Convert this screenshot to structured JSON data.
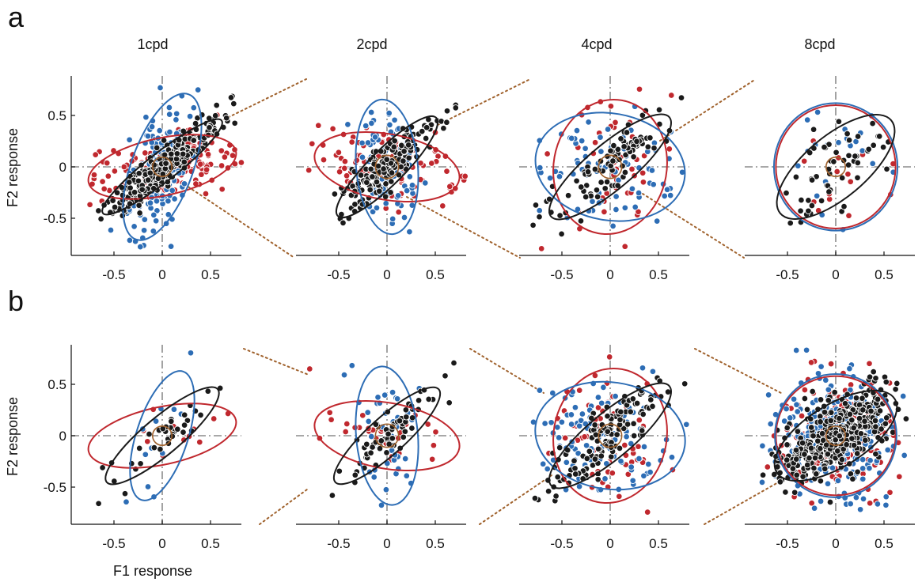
{
  "figure": {
    "panel_labels": [
      "a",
      "b"
    ],
    "column_titles": [
      "1cpd",
      "2cpd",
      "4cpd",
      "8cpd"
    ]
  },
  "colors": {
    "red": "#c0282e",
    "blue": "#2d6db5",
    "black": "#1a1a1a",
    "brown": "#a0622d",
    "crosshair": "#8c8c8c",
    "axis": "#111111"
  },
  "chart_data": {
    "type": "scatter",
    "xlabel": "F1 response",
    "ylabel": "F2 response",
    "xlim": [
      -0.85,
      0.85
    ],
    "ylim": [
      -0.9,
      0.9
    ],
    "xticks": [
      -0.5,
      0,
      0.5
    ],
    "xtick_labels": [
      "-0.5",
      "0",
      "0.5"
    ],
    "yticks": [
      -0.5,
      0,
      0.5
    ],
    "ytick_labels": [
      "-0.5",
      "0",
      "0.5"
    ],
    "grid": false,
    "rows": [
      {
        "label": "a",
        "panels": [
          {
            "title": "1cpd",
            "n": {
              "red": 160,
              "blue": 150,
              "black": 280
            },
            "ellipses": {
              "red": {
                "cx": 0.0,
                "cy": 0.0,
                "a": 0.78,
                "b": 0.28,
                "angle": 12
              },
              "blue": {
                "cx": 0.0,
                "cy": 0.0,
                "a": 0.8,
                "b": 0.3,
                "angle": 70
              },
              "black": {
                "cx": 0.0,
                "cy": 0.0,
                "a": 0.78,
                "b": 0.14,
                "angle": 38
              },
              "brown": {
                "cx": 0.0,
                "cy": 0.0,
                "r": 0.1
              }
            }
          },
          {
            "title": "2cpd",
            "n": {
              "red": 110,
              "blue": 100,
              "black": 170
            },
            "ellipses": {
              "red": {
                "cx": 0.0,
                "cy": 0.0,
                "a": 0.76,
                "b": 0.32,
                "angle": -10
              },
              "blue": {
                "cx": 0.0,
                "cy": 0.0,
                "a": 0.7,
                "b": 0.3,
                "angle": 95
              },
              "black": {
                "cx": 0.0,
                "cy": 0.0,
                "a": 0.72,
                "b": 0.17,
                "angle": 45
              },
              "brown": {
                "cx": 0.0,
                "cy": 0.0,
                "r": 0.12
              }
            }
          },
          {
            "title": "4cpd",
            "n": {
              "red": 50,
              "blue": 80,
              "black": 90
            },
            "ellipses": {
              "red": {
                "cx": 0.0,
                "cy": 0.0,
                "a": 0.7,
                "b": 0.55,
                "angle": 80
              },
              "blue": {
                "cx": 0.0,
                "cy": 0.0,
                "a": 0.78,
                "b": 0.52,
                "angle": -10
              },
              "black": {
                "cx": 0.0,
                "cy": 0.0,
                "a": 0.8,
                "b": 0.22,
                "angle": 40
              },
              "brown": {
                "cx": 0.0,
                "cy": 0.0,
                "r": 0.12
              }
            }
          },
          {
            "title": "8cpd",
            "n": {
              "red": 14,
              "blue": 22,
              "black": 55
            },
            "ellipses": {
              "red": {
                "cx": 0.0,
                "cy": 0.0,
                "a": 0.62,
                "b": 0.6,
                "angle": 0
              },
              "blue": {
                "cx": 0.0,
                "cy": 0.0,
                "a": 0.64,
                "b": 0.62,
                "angle": 0
              },
              "black": {
                "cx": 0.0,
                "cy": 0.0,
                "a": 0.75,
                "b": 0.3,
                "angle": 40
              },
              "brown": {
                "cx": 0.0,
                "cy": 0.0,
                "r": 0.1
              }
            }
          }
        ]
      },
      {
        "label": "b",
        "panels": [
          {
            "title": "1cpd",
            "n": {
              "red": 12,
              "blue": 14,
              "black": 35
            },
            "ellipses": {
              "red": {
                "cx": 0.0,
                "cy": 0.0,
                "a": 0.78,
                "b": 0.28,
                "angle": 12
              },
              "blue": {
                "cx": 0.0,
                "cy": 0.0,
                "a": 0.7,
                "b": 0.25,
                "angle": 72
              },
              "black": {
                "cx": 0.0,
                "cy": 0.0,
                "a": 0.75,
                "b": 0.18,
                "angle": 40
              },
              "brown": {
                "cx": 0.0,
                "cy": 0.0,
                "r": 0.1
              }
            }
          },
          {
            "title": "2cpd",
            "n": {
              "red": 30,
              "blue": 40,
              "black": 65
            },
            "ellipses": {
              "red": {
                "cx": 0.0,
                "cy": 0.0,
                "a": 0.76,
                "b": 0.32,
                "angle": -10
              },
              "blue": {
                "cx": 0.0,
                "cy": 0.0,
                "a": 0.72,
                "b": 0.3,
                "angle": 95
              },
              "black": {
                "cx": 0.0,
                "cy": 0.0,
                "a": 0.72,
                "b": 0.18,
                "angle": 42
              },
              "brown": {
                "cx": 0.0,
                "cy": 0.0,
                "r": 0.12
              }
            }
          },
          {
            "title": "4cpd",
            "n": {
              "red": 70,
              "blue": 110,
              "black": 140
            },
            "ellipses": {
              "red": {
                "cx": 0.0,
                "cy": 0.0,
                "a": 0.7,
                "b": 0.55,
                "angle": 80
              },
              "blue": {
                "cx": 0.0,
                "cy": 0.0,
                "a": 0.78,
                "b": 0.52,
                "angle": -8
              },
              "black": {
                "cx": 0.0,
                "cy": 0.0,
                "a": 0.8,
                "b": 0.22,
                "angle": 40
              },
              "brown": {
                "cx": 0.0,
                "cy": 0.0,
                "r": 0.12
              }
            }
          },
          {
            "title": "8cpd",
            "n": {
              "red": 150,
              "blue": 260,
              "black": 420
            },
            "ellipses": {
              "red": {
                "cx": 0.0,
                "cy": 0.0,
                "a": 0.62,
                "b": 0.58,
                "angle": 0
              },
              "blue": {
                "cx": 0.0,
                "cy": 0.0,
                "a": 0.63,
                "b": 0.6,
                "angle": 0
              },
              "black": {
                "cx": 0.0,
                "cy": 0.0,
                "a": 0.72,
                "b": 0.3,
                "angle": 32
              },
              "brown": {
                "cx": 0.0,
                "cy": 0.0,
                "r": 0.1
              }
            }
          }
        ]
      }
    ]
  }
}
